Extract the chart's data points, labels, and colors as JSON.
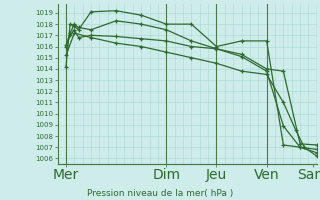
{
  "xlabel": "Pression niveau de la mer( hPa )",
  "background_color": "#ceecea",
  "grid_color": "#b0dbd6",
  "line_color": "#2d6b2d",
  "vline_color": "#4a7a4a",
  "ylim": [
    1005.5,
    1019.8
  ],
  "xlim": [
    0,
    31
  ],
  "yticks": [
    1006,
    1007,
    1008,
    1009,
    1010,
    1011,
    1012,
    1013,
    1014,
    1015,
    1016,
    1017,
    1018,
    1019
  ],
  "x_day_labels": [
    "Mer",
    "Dim",
    "Jeu",
    "Ven",
    "Sam"
  ],
  "x_day_positions": [
    1,
    13,
    19,
    25,
    30.5
  ],
  "vline_positions": [
    1,
    13,
    19,
    25,
    31
  ],
  "lines": [
    {
      "x": [
        1,
        1.5,
        2,
        2.5,
        4,
        7,
        10,
        13,
        16,
        19,
        22,
        25,
        27,
        29,
        31
      ],
      "y": [
        1014.2,
        1018.0,
        1017.8,
        1017.5,
        1019.1,
        1019.2,
        1018.8,
        1018.0,
        1018.0,
        1016.0,
        1016.5,
        1016.5,
        1007.2,
        1007.0,
        1006.5
      ]
    },
    {
      "x": [
        1,
        1.5,
        2,
        2.5,
        4,
        7,
        10,
        13,
        16,
        19,
        22,
        25,
        27,
        29,
        31
      ],
      "y": [
        1016.1,
        1017.2,
        1018.0,
        1017.7,
        1017.5,
        1018.3,
        1018.0,
        1017.5,
        1016.5,
        1015.8,
        1015.1,
        1013.8,
        1008.9,
        1007.0,
        1006.8
      ]
    },
    {
      "x": [
        1,
        1.5,
        2,
        2.5,
        4,
        7,
        10,
        13,
        16,
        19,
        22,
        25,
        27,
        29,
        31
      ],
      "y": [
        1016.0,
        1017.0,
        1017.5,
        1016.8,
        1017.0,
        1016.9,
        1016.7,
        1016.5,
        1016.0,
        1015.8,
        1015.3,
        1014.0,
        1013.8,
        1007.3,
        1007.2
      ]
    },
    {
      "x": [
        1,
        2,
        4,
        7,
        10,
        13,
        16,
        19,
        22,
        25,
        27,
        28.5,
        29.5,
        31
      ],
      "y": [
        1015.2,
        1017.2,
        1016.8,
        1016.3,
        1016.0,
        1015.5,
        1015.0,
        1014.5,
        1013.8,
        1013.5,
        1011.0,
        1008.5,
        1007.0,
        1006.2
      ]
    }
  ]
}
